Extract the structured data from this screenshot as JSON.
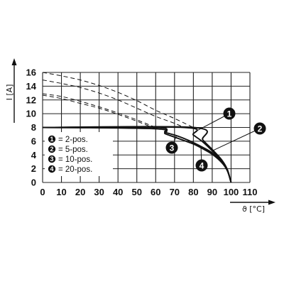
{
  "chart_data": {
    "type": "line",
    "xlabel": "ϑ [°C]",
    "ylabel": "I [A]",
    "xlim": [
      0,
      110
    ],
    "ylim": [
      0,
      16
    ],
    "x_ticks": [
      "0",
      "10",
      "20",
      "30",
      "40",
      "50",
      "60",
      "70",
      "80",
      "90",
      "100",
      "110"
    ],
    "y_ticks": [
      "0",
      "2",
      "4",
      "6",
      "8",
      "10",
      "12",
      "14",
      "16"
    ],
    "grid": true,
    "legend": {
      "placement": "left-middle",
      "items": [
        {
          "num": "1",
          "label": "= 2-pos."
        },
        {
          "num": "2",
          "label": "= 5-pos."
        },
        {
          "num": "3",
          "label": "= 10-pos."
        },
        {
          "num": "4",
          "label": "= 20-pos."
        }
      ]
    },
    "series": [
      {
        "marker": "1",
        "style": "solid",
        "x": [
          0,
          80,
          85,
          90,
          95,
          98,
          100
        ],
        "y": [
          8,
          8,
          6.2,
          4.8,
          3.3,
          1.9,
          0
        ]
      },
      {
        "marker": "2",
        "style": "solid",
        "x": [
          0,
          75,
          80,
          85,
          90,
          95,
          98,
          100
        ],
        "y": [
          8,
          8,
          6.9,
          5.9,
          4.6,
          3.1,
          1.8,
          0
        ]
      },
      {
        "marker": "3",
        "style": "solid",
        "x": [
          0,
          60,
          65,
          70,
          75,
          80,
          85,
          90,
          95,
          98,
          100
        ],
        "y": [
          8,
          8,
          7.3,
          6.9,
          6.4,
          5.8,
          5.1,
          4.3,
          3.0,
          1.8,
          0
        ]
      },
      {
        "marker": "4",
        "style": "solid",
        "x": [
          0,
          60,
          65,
          70,
          75,
          80,
          85,
          90,
          95,
          98,
          100
        ],
        "y": [
          8,
          7.8,
          7.1,
          6.6,
          6.1,
          5.6,
          4.9,
          4.1,
          2.9,
          1.7,
          0
        ]
      },
      {
        "marker": "1",
        "style": "dashed",
        "x": [
          0,
          10,
          20,
          30,
          40,
          50,
          60,
          70,
          80
        ],
        "y": [
          16,
          15.5,
          14.9,
          14.1,
          13.1,
          11.9,
          10.5,
          9.3,
          8
        ]
      },
      {
        "marker": "2",
        "style": "dashed",
        "x": [
          0,
          10,
          20,
          30,
          40,
          50,
          60,
          70,
          75
        ],
        "y": [
          14.9,
          14.4,
          13.8,
          13.0,
          12.0,
          10.8,
          9.6,
          8.6,
          8
        ]
      },
      {
        "marker": "3",
        "style": "dashed",
        "x": [
          0,
          10,
          20,
          30,
          40,
          50,
          60
        ],
        "y": [
          12.9,
          12.5,
          11.8,
          11.0,
          10.1,
          9.1,
          8
        ]
      },
      {
        "marker": "4",
        "style": "dashed",
        "x": [
          0,
          10,
          20,
          30,
          40,
          50,
          60
        ],
        "y": [
          12.7,
          12.2,
          11.5,
          10.8,
          9.9,
          8.9,
          7.8
        ]
      }
    ],
    "callouts": [
      {
        "num": "1",
        "points_to_x": 81,
        "points_to_y": 7.4
      },
      {
        "num": "2",
        "points_to_x": 90,
        "points_to_y": 4.6
      },
      {
        "num": "3",
        "points_to_x": 71,
        "points_to_y": 6.8
      },
      {
        "num": "4",
        "points_to_x": 84,
        "points_to_y": 5.2
      }
    ],
    "colors": {
      "line": "#111111",
      "grid": "#222222",
      "marker_fill": "#111111",
      "marker_text": "#ffffff"
    }
  }
}
